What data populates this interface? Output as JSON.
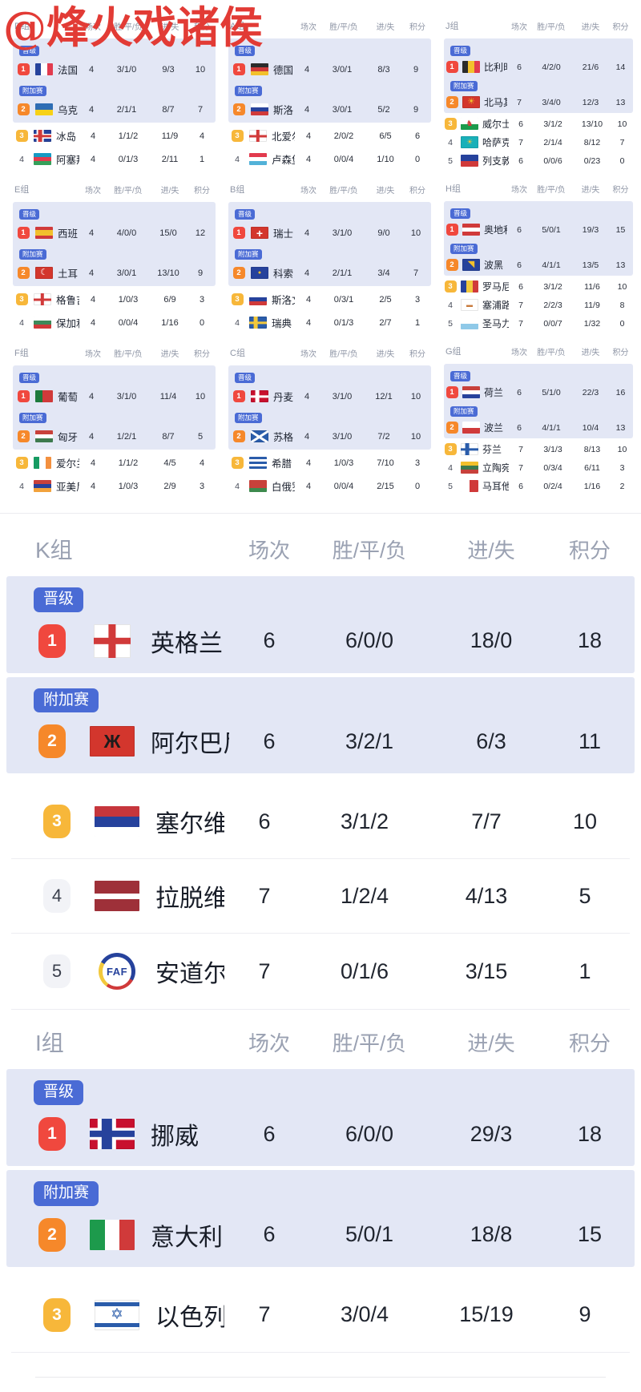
{
  "watermark": "@烽火戏诸侯",
  "headers": {
    "games": "场次",
    "wdl": "胜/平/负",
    "goals": "进/失",
    "points": "积分"
  },
  "badges": {
    "promote": "晋级",
    "playoff": "附加赛"
  },
  "colors": {
    "rank1": "#f0483e",
    "rank2": "#f6882a",
    "rank3": "#f7b73a",
    "badge_blue": "#4a6bd5",
    "row_highlight": "#e3e7f5",
    "watermark_red": "#e23b35"
  },
  "mini_columns": [
    [
      {
        "label": "D组",
        "teams": [
          {
            "rank": "1",
            "status": "promote",
            "name": "法国",
            "flag": {
              "t": "v",
              "c": [
                "#26429c",
                "#ffffff",
                "#e23b4e"
              ]
            },
            "games": "4",
            "wdl": "3/1/0",
            "goals": "9/3",
            "pts": "10"
          },
          {
            "rank": "2",
            "status": "playoff",
            "name": "乌克兰",
            "flag": {
              "t": "h",
              "c": [
                "#2e6db4",
                "#f7d117"
              ]
            },
            "games": "4",
            "wdl": "2/1/1",
            "goals": "8/7",
            "pts": "7"
          },
          {
            "rank": "3",
            "name": "冰岛",
            "flag": {
              "t": "cross",
              "bg": "#26429c",
              "cr": "#d13a3a",
              "o": "#ffffff"
            },
            "games": "4",
            "wdl": "1/1/2",
            "goals": "11/9",
            "pts": "4"
          },
          {
            "rank": "4",
            "name": "阿塞拜疆",
            "flag": {
              "t": "h",
              "c": [
                "#169bc4",
                "#e23b4e",
                "#35a05a"
              ]
            },
            "games": "4",
            "wdl": "0/1/3",
            "goals": "2/11",
            "pts": "1"
          }
        ]
      },
      {
        "label": "E组",
        "teams": [
          {
            "rank": "1",
            "status": "promote",
            "name": "西班牙",
            "flag": {
              "t": "h",
              "c": [
                "#d03a3a",
                "#f2c02c",
                "#d03a3a"
              ],
              "w": [
                1,
                2,
                1
              ]
            },
            "games": "4",
            "wdl": "4/0/0",
            "goals": "15/0",
            "pts": "12"
          },
          {
            "rank": "2",
            "status": "playoff",
            "name": "土耳其",
            "flag": {
              "t": "solid",
              "c": "#d3362d",
              "g": "☾",
              "gc": "#ffffff",
              "gs": 0.7
            },
            "games": "4",
            "wdl": "3/0/1",
            "goals": "13/10",
            "pts": "9"
          },
          {
            "rank": "3",
            "name": "格鲁吉亚",
            "flag": {
              "t": "cross",
              "bg": "#ffffff",
              "cr": "#d13a3a",
              "center": true
            },
            "games": "4",
            "wdl": "1/0/3",
            "goals": "6/9",
            "pts": "3"
          },
          {
            "rank": "4",
            "name": "保加利亚",
            "flag": {
              "t": "h",
              "c": [
                "#ffffff",
                "#3d8a5a",
                "#d03a3a"
              ]
            },
            "games": "4",
            "wdl": "0/0/4",
            "goals": "1/16",
            "pts": "0"
          }
        ]
      },
      {
        "label": "F组",
        "teams": [
          {
            "rank": "1",
            "status": "promote",
            "name": "葡萄牙",
            "flag": {
              "t": "v",
              "c": [
                "#1d7a3c",
                "#d03a3a"
              ],
              "w": [
                2,
                3
              ]
            },
            "games": "4",
            "wdl": "3/1/0",
            "goals": "11/4",
            "pts": "10"
          },
          {
            "rank": "2",
            "status": "playoff",
            "name": "匈牙利",
            "flag": {
              "t": "h",
              "c": [
                "#c8413b",
                "#ffffff",
                "#3d7a4e"
              ]
            },
            "games": "4",
            "wdl": "1/2/1",
            "goals": "8/7",
            "pts": "5"
          },
          {
            "rank": "3",
            "name": "爱尔兰",
            "flag": {
              "t": "v",
              "c": [
                "#169b62",
                "#ffffff",
                "#f3903f"
              ]
            },
            "games": "4",
            "wdl": "1/1/2",
            "goals": "4/5",
            "pts": "4"
          },
          {
            "rank": "4",
            "name": "亚美尼亚",
            "flag": {
              "t": "h",
              "c": [
                "#c8413b",
                "#26429c",
                "#f2a23c"
              ]
            },
            "games": "4",
            "wdl": "1/0/3",
            "goals": "2/9",
            "pts": "3"
          }
        ]
      }
    ],
    [
      {
        "label": "A组",
        "teams": [
          {
            "rank": "1",
            "status": "promote",
            "name": "德国",
            "flag": {
              "t": "h",
              "c": [
                "#2b2b2b",
                "#d03a3a",
                "#f2c02c"
              ]
            },
            "games": "4",
            "wdl": "3/0/1",
            "goals": "8/3",
            "pts": "9"
          },
          {
            "rank": "2",
            "status": "playoff",
            "name": "斯洛伐克",
            "flag": {
              "t": "h",
              "c": [
                "#ffffff",
                "#26429c",
                "#d03a3a"
              ]
            },
            "games": "4",
            "wdl": "3/0/1",
            "goals": "5/2",
            "pts": "9"
          },
          {
            "rank": "3",
            "name": "北爱尔兰",
            "flag": {
              "t": "cross",
              "bg": "#ffffff",
              "cr": "#d13a3a",
              "center": true
            },
            "games": "4",
            "wdl": "2/0/2",
            "goals": "6/5",
            "pts": "6"
          },
          {
            "rank": "4",
            "name": "卢森堡",
            "flag": {
              "t": "h",
              "c": [
                "#e23b4e",
                "#ffffff",
                "#52b2d8"
              ]
            },
            "games": "4",
            "wdl": "0/0/4",
            "goals": "1/10",
            "pts": "0"
          }
        ]
      },
      {
        "label": "B组",
        "teams": [
          {
            "rank": "1",
            "status": "promote",
            "name": "瑞士",
            "flag": {
              "t": "solid",
              "c": "#d3362d",
              "g": "+",
              "gc": "#ffffff",
              "gs": 0.95,
              "gb": true
            },
            "games": "4",
            "wdl": "3/1/0",
            "goals": "9/0",
            "pts": "10"
          },
          {
            "rank": "2",
            "status": "playoff",
            "name": "科索沃",
            "flag": {
              "t": "solid",
              "c": "#26429c",
              "g": "●",
              "gc": "#f2c02c",
              "gs": 0.45
            },
            "games": "4",
            "wdl": "2/1/1",
            "goals": "3/4",
            "pts": "7"
          },
          {
            "rank": "3",
            "name": "斯洛文尼亚",
            "flag": {
              "t": "h",
              "c": [
                "#ffffff",
                "#26429c",
                "#d03a3a"
              ]
            },
            "games": "4",
            "wdl": "0/3/1",
            "goals": "2/5",
            "pts": "3"
          },
          {
            "rank": "4",
            "name": "瑞典",
            "flag": {
              "t": "cross",
              "bg": "#2a5caa",
              "cr": "#f2c83c"
            },
            "games": "4",
            "wdl": "0/1/3",
            "goals": "2/7",
            "pts": "1"
          }
        ]
      },
      {
        "label": "C组",
        "teams": [
          {
            "rank": "1",
            "status": "promote",
            "name": "丹麦",
            "flag": {
              "t": "cross",
              "bg": "#c8102e",
              "cr": "#ffffff"
            },
            "games": "4",
            "wdl": "3/1/0",
            "goals": "12/1",
            "pts": "10"
          },
          {
            "rank": "2",
            "status": "playoff",
            "name": "苏格兰",
            "flag": {
              "t": "saltire",
              "bg": "#2a5caa",
              "cr": "#ffffff"
            },
            "games": "4",
            "wdl": "3/1/0",
            "goals": "7/2",
            "pts": "10"
          },
          {
            "rank": "3",
            "name": "希腊",
            "flag": {
              "t": "h",
              "c": [
                "#2a5caa",
                "#ffffff",
                "#2a5caa",
                "#ffffff",
                "#2a5caa"
              ]
            },
            "games": "4",
            "wdl": "1/0/3",
            "goals": "7/10",
            "pts": "3"
          },
          {
            "rank": "4",
            "name": "白俄罗斯",
            "flag": {
              "t": "h",
              "c": [
                "#c8413b",
                "#3d8a4e"
              ],
              "w": [
                2,
                1
              ]
            },
            "games": "4",
            "wdl": "0/0/4",
            "goals": "2/15",
            "pts": "0"
          }
        ]
      }
    ],
    [
      {
        "label": "J组",
        "teams": [
          {
            "rank": "1",
            "status": "promote",
            "name": "比利时",
            "flag": {
              "t": "v",
              "c": [
                "#2b2b2b",
                "#f2c02c",
                "#e23b4e"
              ]
            },
            "games": "6",
            "wdl": "4/2/0",
            "goals": "21/6",
            "pts": "14"
          },
          {
            "rank": "2",
            "status": "playoff",
            "name": "北马其顿",
            "flag": {
              "t": "solid",
              "c": "#d3362d",
              "g": "☀",
              "gc": "#f2c02c",
              "gs": 0.7
            },
            "games": "7",
            "wdl": "3/4/0",
            "goals": "12/3",
            "pts": "13"
          },
          {
            "rank": "3",
            "name": "威尔士",
            "flag": {
              "t": "h",
              "c": [
                "#ffffff",
                "#1d9a4c"
              ],
              "g": "♞",
              "gc": "#d03a3a",
              "gs": 0.65
            },
            "games": "6",
            "wdl": "3/1/2",
            "goals": "13/10",
            "pts": "10"
          },
          {
            "rank": "4",
            "name": "哈萨克斯坦",
            "flag": {
              "t": "solid",
              "c": "#19b0b9",
              "g": "☀",
              "gc": "#f2c83c",
              "gs": 0.6
            },
            "games": "7",
            "wdl": "2/1/4",
            "goals": "8/12",
            "pts": "7"
          },
          {
            "rank": "5",
            "name": "列支敦士登",
            "flag": {
              "t": "h",
              "c": [
                "#26429c",
                "#d03a3a"
              ]
            },
            "games": "6",
            "wdl": "0/0/6",
            "goals": "0/23",
            "pts": "0"
          }
        ]
      },
      {
        "label": "H组",
        "teams": [
          {
            "rank": "1",
            "status": "promote",
            "name": "奥地利",
            "flag": {
              "t": "h",
              "c": [
                "#d03a3a",
                "#ffffff",
                "#d03a3a"
              ]
            },
            "games": "6",
            "wdl": "5/0/1",
            "goals": "19/3",
            "pts": "15"
          },
          {
            "rank": "2",
            "status": "playoff",
            "name": "波黑",
            "flag": {
              "t": "solid",
              "c": "#26429c",
              "g": "◥",
              "gc": "#f2c02c",
              "gs": 0.7
            },
            "games": "6",
            "wdl": "4/1/1",
            "goals": "13/5",
            "pts": "13"
          },
          {
            "rank": "3",
            "name": "罗马尼亚",
            "flag": {
              "t": "v",
              "c": [
                "#26429c",
                "#f2c83c",
                "#d03a3a"
              ]
            },
            "games": "6",
            "wdl": "3/1/2",
            "goals": "11/6",
            "pts": "10"
          },
          {
            "rank": "4",
            "name": "塞浦路斯",
            "flag": {
              "t": "solid",
              "c": "#ffffff",
              "g": "▬",
              "gc": "#c87a3c",
              "gs": 0.5
            },
            "games": "7",
            "wdl": "2/2/3",
            "goals": "11/9",
            "pts": "8"
          },
          {
            "rank": "5",
            "name": "圣马力诺",
            "flag": {
              "t": "h",
              "c": [
                "#ffffff",
                "#8fc9e8"
              ]
            },
            "games": "7",
            "wdl": "0/0/7",
            "goals": "1/32",
            "pts": "0"
          }
        ]
      },
      {
        "label": "G组",
        "teams": [
          {
            "rank": "1",
            "status": "promote",
            "name": "荷兰",
            "flag": {
              "t": "h",
              "c": [
                "#c8413b",
                "#ffffff",
                "#26429c"
              ]
            },
            "games": "6",
            "wdl": "5/1/0",
            "goals": "22/3",
            "pts": "16"
          },
          {
            "rank": "2",
            "status": "playoff",
            "name": "波兰",
            "flag": {
              "t": "h",
              "c": [
                "#ffffff",
                "#d03a3a"
              ]
            },
            "games": "6",
            "wdl": "4/1/1",
            "goals": "10/4",
            "pts": "13"
          },
          {
            "rank": "3",
            "name": "芬兰",
            "flag": {
              "t": "cross",
              "bg": "#ffffff",
              "cr": "#2a5caa"
            },
            "games": "7",
            "wdl": "3/1/3",
            "goals": "8/13",
            "pts": "10"
          },
          {
            "rank": "4",
            "name": "立陶宛",
            "flag": {
              "t": "h",
              "c": [
                "#f2c02c",
                "#3d7a4e",
                "#c8413b"
              ]
            },
            "games": "7",
            "wdl": "0/3/4",
            "goals": "6/11",
            "pts": "3"
          },
          {
            "rank": "5",
            "name": "马耳他",
            "flag": {
              "t": "v",
              "c": [
                "#ffffff",
                "#d03a3a"
              ]
            },
            "games": "6",
            "wdl": "0/2/4",
            "goals": "1/16",
            "pts": "2"
          }
        ]
      }
    ]
  ],
  "big_groups": [
    {
      "label": "K组",
      "teams": [
        {
          "rank": "1",
          "status": "promote",
          "name": "英格兰",
          "flag": {
            "t": "cross",
            "bg": "#ffffff",
            "cr": "#d13a3a",
            "center": true,
            "sq": true
          },
          "games": "6",
          "wdl": "6/0/0",
          "goals": "18/0",
          "pts": "18"
        },
        {
          "rank": "2",
          "status": "playoff",
          "name": "阿尔巴尼亚",
          "flag": {
            "t": "solid",
            "c": "#d3362d",
            "g": "Ж",
            "gc": "#1c1c1c",
            "gs": 0.6,
            "gb": true
          },
          "games": "6",
          "wdl": "3/2/1",
          "goals": "6/3",
          "pts": "11"
        },
        {
          "rank": "3",
          "name": "塞尔维亚",
          "flag": {
            "t": "h",
            "c": [
              "#c6363c",
              "#26429c",
              "#ffffff"
            ]
          },
          "games": "6",
          "wdl": "3/1/2",
          "goals": "7/7",
          "pts": "10"
        },
        {
          "rank": "4",
          "name": "拉脱维亚",
          "flag": {
            "t": "h",
            "c": [
              "#9e3039",
              "#ffffff",
              "#9e3039"
            ],
            "w": [
              2,
              1,
              2
            ]
          },
          "games": "7",
          "wdl": "1/2/4",
          "goals": "4/13",
          "pts": "5"
        },
        {
          "rank": "5",
          "name": "安道尔",
          "flag": {
            "t": "faf",
            "text": "FAF"
          },
          "games": "7",
          "wdl": "0/1/6",
          "goals": "3/15",
          "pts": "1"
        }
      ]
    },
    {
      "label": "I组",
      "teams": [
        {
          "rank": "1",
          "status": "promote",
          "name": "挪威",
          "flag": {
            "t": "cross",
            "bg": "#c8102e",
            "cr": "#26429c",
            "o": "#ffffff"
          },
          "games": "6",
          "wdl": "6/0/0",
          "goals": "29/3",
          "pts": "18"
        },
        {
          "rank": "2",
          "status": "playoff",
          "name": "意大利",
          "flag": {
            "t": "v",
            "c": [
              "#1d9a4c",
              "#ffffff",
              "#d03a3a"
            ]
          },
          "games": "6",
          "wdl": "5/0/1",
          "goals": "18/8",
          "pts": "15"
        },
        {
          "rank": "3",
          "name": "以色列",
          "flag": {
            "t": "israel",
            "g": "✡",
            "gc": "#2a5caa",
            "gs": 0.5
          },
          "games": "7",
          "wdl": "3/0/4",
          "goals": "15/19",
          "pts": "9"
        }
      ]
    }
  ]
}
